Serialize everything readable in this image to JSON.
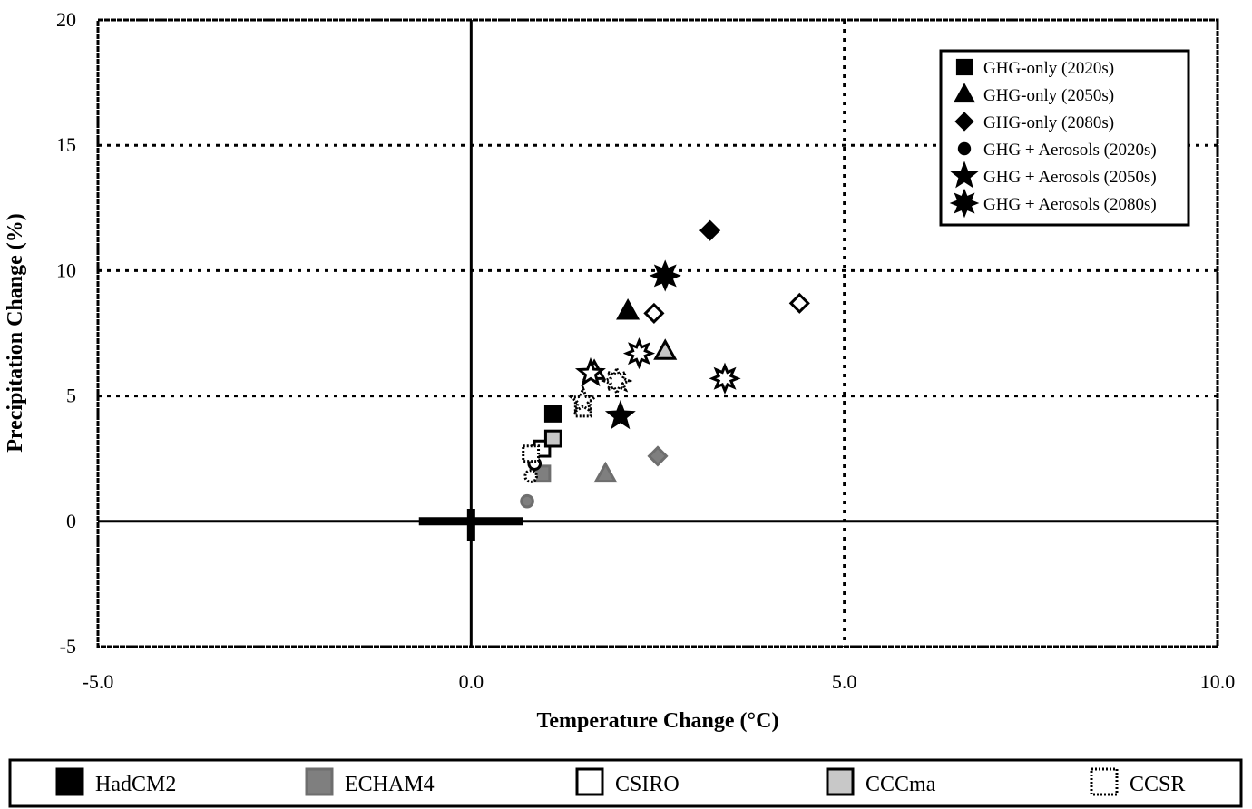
{
  "chart_data": {
    "type": "scatter",
    "title": "",
    "xlabel": "Temperature Change (°C)",
    "ylabel": "Precipitation Change (%)",
    "xlim": [
      -5.0,
      10.0
    ],
    "ylim": [
      -5,
      20
    ],
    "x_ticks": [
      "-5.0",
      "0.0",
      "5.0",
      "10.0"
    ],
    "y_ticks": [
      "-5",
      "0",
      "5",
      "10",
      "15",
      "20"
    ],
    "grid": "dotted at x=5 and y=5,10,15",
    "origin_cross": "thick cross at (0,0)",
    "legend_placement": "top-right",
    "scenario_legend": [
      {
        "marker": "square",
        "label": "GHG-only (2020s)"
      },
      {
        "marker": "triangle",
        "label": "GHG-only (2050s)"
      },
      {
        "marker": "diamond",
        "label": "GHG-only (2080s)"
      },
      {
        "marker": "circle",
        "label": "GHG + Aerosols (2020s)"
      },
      {
        "marker": "star",
        "label": "GHG + Aerosols (2050s)"
      },
      {
        "marker": "burst",
        "label": "GHG + Aerosols (2080s)"
      }
    ],
    "model_legend": [
      {
        "name": "HadCM2",
        "style": "hadcm2"
      },
      {
        "name": "ECHAM4",
        "style": "echam4"
      },
      {
        "name": "CSIRO",
        "style": "csiro"
      },
      {
        "name": "CCCma",
        "style": "cccma"
      },
      {
        "name": "CCSR",
        "style": "ccsr"
      }
    ],
    "styles": {
      "hadcm2": {
        "fill": "#000000",
        "stroke": "#000000",
        "dash": ""
      },
      "echam4": {
        "fill": "#7f7f7f",
        "stroke": "#6e6e6e",
        "dash": ""
      },
      "csiro": {
        "fill": "#ffffff",
        "stroke": "#000000",
        "dash": ""
      },
      "cccma": {
        "fill": "#c8c8c8",
        "stroke": "#000000",
        "dash": ""
      },
      "ccsr": {
        "fill": "#ffffff",
        "stroke": "#000000",
        "dash": "2,2"
      }
    },
    "points": [
      {
        "model": "hadcm2",
        "scenario": "square",
        "x": 1.1,
        "y": 4.3
      },
      {
        "model": "hadcm2",
        "scenario": "triangle",
        "x": 2.1,
        "y": 8.4
      },
      {
        "model": "hadcm2",
        "scenario": "diamond",
        "x": 3.2,
        "y": 11.6
      },
      {
        "model": "hadcm2",
        "scenario": "circle",
        "x": 0.85,
        "y": 2.8
      },
      {
        "model": "hadcm2",
        "scenario": "star",
        "x": 2.0,
        "y": 4.2
      },
      {
        "model": "hadcm2",
        "scenario": "burst",
        "x": 2.6,
        "y": 9.8
      },
      {
        "model": "echam4",
        "scenario": "square",
        "x": 0.95,
        "y": 1.9
      },
      {
        "model": "echam4",
        "scenario": "triangle",
        "x": 1.8,
        "y": 1.9
      },
      {
        "model": "echam4",
        "scenario": "diamond",
        "x": 2.5,
        "y": 2.6
      },
      {
        "model": "echam4",
        "scenario": "circle",
        "x": 0.75,
        "y": 0.8
      },
      {
        "model": "csiro",
        "scenario": "square",
        "x": 0.95,
        "y": 2.9
      },
      {
        "model": "csiro",
        "scenario": "triangle",
        "x": 1.65,
        "y": 6.0
      },
      {
        "model": "csiro",
        "scenario": "diamond",
        "x": 2.45,
        "y": 8.3
      },
      {
        "model": "csiro",
        "scenario": "diamond",
        "x": 4.4,
        "y": 8.7
      },
      {
        "model": "csiro",
        "scenario": "circle",
        "x": 0.85,
        "y": 2.3
      },
      {
        "model": "csiro",
        "scenario": "star",
        "x": 1.6,
        "y": 5.9
      },
      {
        "model": "csiro",
        "scenario": "burst",
        "x": 2.25,
        "y": 6.7
      },
      {
        "model": "csiro",
        "scenario": "burst",
        "x": 3.4,
        "y": 5.7
      },
      {
        "model": "cccma",
        "scenario": "square",
        "x": 1.1,
        "y": 3.3
      },
      {
        "model": "cccma",
        "scenario": "triangle",
        "x": 2.6,
        "y": 6.8
      },
      {
        "model": "ccsr",
        "scenario": "square",
        "x": 0.8,
        "y": 2.7
      },
      {
        "model": "ccsr",
        "scenario": "square",
        "x": 1.5,
        "y": 4.5
      },
      {
        "model": "ccsr",
        "scenario": "circle",
        "x": 0.8,
        "y": 1.8
      },
      {
        "model": "ccsr",
        "scenario": "star",
        "x": 1.5,
        "y": 4.8
      },
      {
        "model": "ccsr",
        "scenario": "burst",
        "x": 1.95,
        "y": 5.6
      }
    ]
  }
}
